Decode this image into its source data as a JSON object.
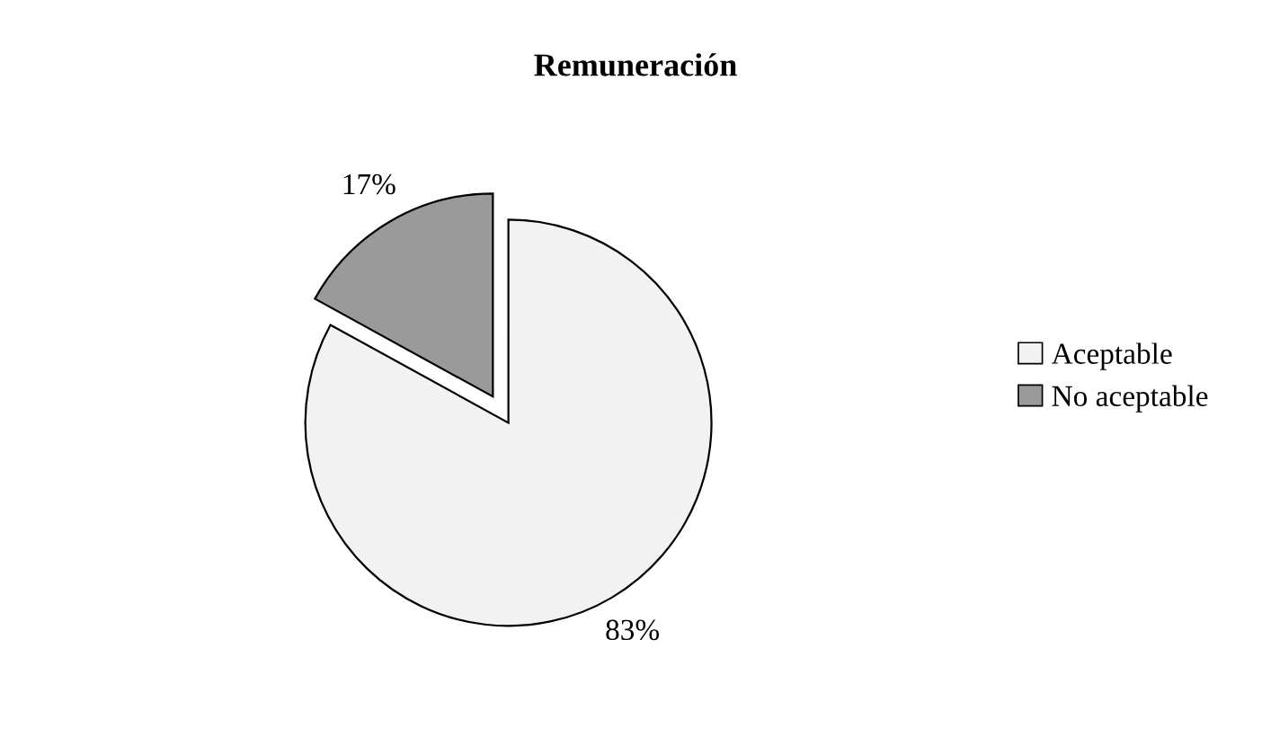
{
  "chart_data": {
    "type": "pie",
    "title": "Remuneración",
    "categories": [
      "Aceptable",
      "No aceptable"
    ],
    "values": [
      83,
      17
    ],
    "colors": [
      "#f2f2f2",
      "#9a9a9a"
    ],
    "value_labels": [
      "83%",
      "17%"
    ],
    "legend": "right"
  }
}
